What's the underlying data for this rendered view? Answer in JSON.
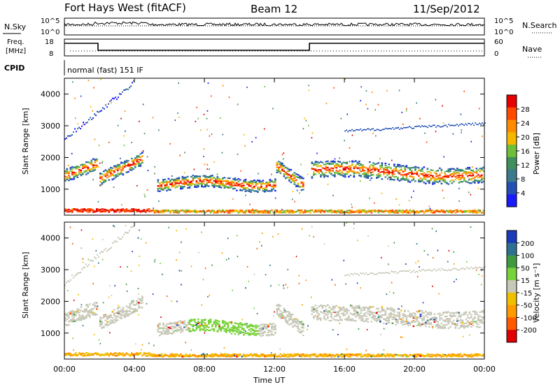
{
  "header": {
    "station": "Fort Hays West (fitACF)",
    "beam": "Beam 12",
    "date": "11/Sep/2012"
  },
  "panels": {
    "nsky": {
      "label": "N.Sky",
      "ticks": [
        "10^5",
        "10^0"
      ],
      "right_label": "N.Search",
      "right_ticks": [
        "10^5",
        "10^0"
      ]
    },
    "freq": {
      "label_line1": "Freq.",
      "label_line2": "[MHz]",
      "ticks": [
        "18",
        "8"
      ],
      "right_label": "Nave",
      "right_ticks": [
        "60",
        "0"
      ]
    },
    "cpid": {
      "label": "CPID",
      "text": "normal (fast) 151 IF"
    }
  },
  "colors": {
    "power_scale": [
      "#1a1aff",
      "#2450b4",
      "#3b7a8c",
      "#3f8f5c",
      "#6fbf3a",
      "#f5b800",
      "#ff8c00",
      "#ff4a00",
      "#e60000"
    ],
    "velocity_scale": [
      "#1a3ab8",
      "#2f6f8f",
      "#3f9a3f",
      "#78d23a",
      "#c8c8b8",
      "#f0c000",
      "#ff9a00",
      "#ff5a00",
      "#e00000"
    ]
  },
  "chart_data": [
    {
      "type": "heatmap",
      "name_panel": "power",
      "ylabel": "Slant Range [km]",
      "ylim": [
        180,
        4500
      ],
      "yticks": [
        "4000",
        "3000",
        "2000",
        "1000"
      ],
      "xlim": [
        0,
        24
      ],
      "colorbar": {
        "label": "Power [dB]",
        "ticks": [
          "28",
          "24",
          "20",
          "16",
          "12",
          "8",
          "4"
        ]
      }
    },
    {
      "type": "heatmap",
      "name_panel": "velocity",
      "ylabel": "Slant Range [km]",
      "ylim": [
        180,
        4500
      ],
      "yticks": [
        "4000",
        "3000",
        "2000",
        "1000"
      ],
      "xlim": [
        0,
        24
      ],
      "xticks": [
        "00:00",
        "04:00",
        "08:00",
        "12:00",
        "16:00",
        "20:00",
        "00:00"
      ],
      "xlabel": "Time UT",
      "colorbar": {
        "label": "Velocity [m s⁻¹]",
        "ticks": [
          "200",
          "100",
          "50",
          "15",
          "-15",
          "-50",
          "-100",
          "-200"
        ]
      }
    }
  ]
}
